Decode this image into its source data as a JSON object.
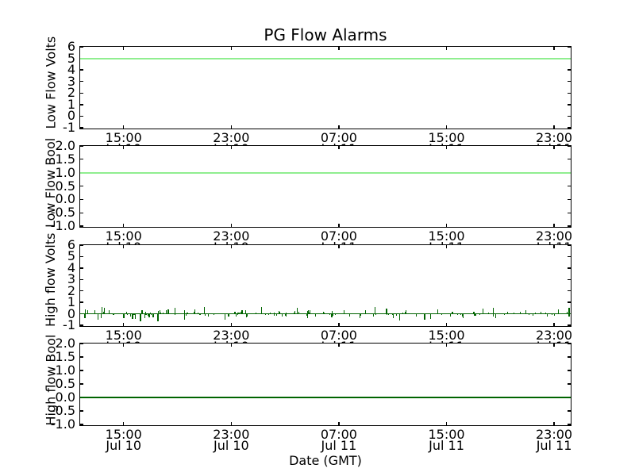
{
  "chart_data": {
    "type": "line",
    "title": "PG Flow Alarms",
    "xlabel": "Date (GMT)",
    "x_axis": {
      "tick_labels_time": [
        "15:00",
        "23:00",
        "07:00",
        "15:00",
        "23:00"
      ],
      "tick_labels_date": [
        "Jul 10",
        "Jul 10",
        "Jul 11",
        "Jul 11",
        "Jul 11"
      ],
      "tick_interval_hours": 8
    },
    "colors": {
      "axis": "#000000",
      "background": "#ffffff",
      "low_flow_line": "#90EE90",
      "high_flow_line": "#006400"
    },
    "subplots": [
      {
        "key": "low-flow-volts",
        "ylabel": "Low Flow Volts",
        "ylim": [
          -1,
          6
        ],
        "ytick_labels": [
          "6",
          "5",
          "4",
          "3",
          "2",
          "1",
          "0",
          "-1"
        ],
        "ytick_values": [
          6,
          5,
          4,
          3,
          2,
          1,
          0,
          -1
        ],
        "series": {
          "name": "Low Flow Volts",
          "constant_value": 5,
          "color": "#90EE90",
          "linewidth": 2
        }
      },
      {
        "key": "low-flow-bool",
        "ylabel": "Low Flow Bool",
        "ylim": [
          -1,
          2
        ],
        "ytick_labels": [
          "2.0",
          "1.5",
          "1.0",
          "0.5",
          "0.0",
          "-0.5",
          "-1.0"
        ],
        "ytick_values": [
          2.0,
          1.5,
          1.0,
          0.5,
          0.0,
          -0.5,
          -1.0
        ],
        "series": {
          "name": "Low Flow Bool",
          "constant_value": 1.0,
          "color": "#90EE90",
          "linewidth": 2
        }
      },
      {
        "key": "high-flow-volts",
        "ylabel": "High flow Volts",
        "ylim": [
          -1,
          6
        ],
        "ytick_labels": [
          "6",
          "5",
          "4",
          "3",
          "2",
          "1",
          "0",
          "-1"
        ],
        "ytick_values": [
          6,
          5,
          4,
          3,
          2,
          1,
          0,
          -1
        ],
        "series": {
          "name": "High flow Volts",
          "constant_value": 0,
          "color": "#006400",
          "linewidth": 1.3,
          "noise": {
            "seed": 11,
            "count": 170,
            "max_amplitude_volts": 0.22,
            "end_spike_volts": 0.5
          }
        }
      },
      {
        "key": "high-flow-bool",
        "ylabel": "High flow Bool",
        "ylim": [
          -1,
          2
        ],
        "ytick_labels": [
          "2.0",
          "1.5",
          "1.0",
          "0.5",
          "0.0",
          "-0.5",
          "-1.0"
        ],
        "ytick_values": [
          2.0,
          1.5,
          1.0,
          0.5,
          0.0,
          -0.5,
          -1.0
        ],
        "series": {
          "name": "High flow Bool",
          "constant_value": 0.0,
          "color": "#006400",
          "linewidth": 1.3
        }
      }
    ]
  }
}
